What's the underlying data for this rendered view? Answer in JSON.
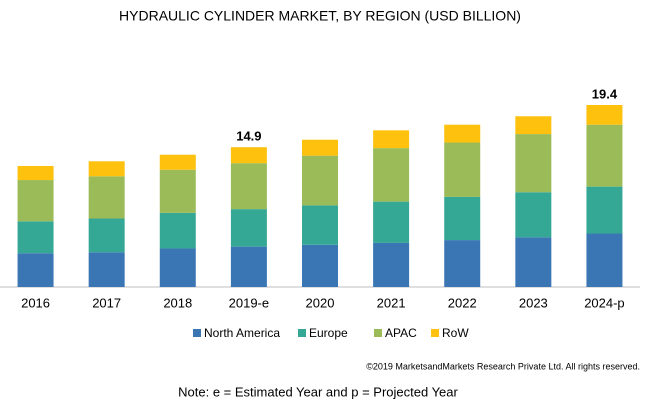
{
  "chart_data": {
    "type": "stacked-bar",
    "title": "HYDRAULIC CYLINDER MARKET, BY REGION (USD BILLION)",
    "categories": [
      "2016",
      "2017",
      "2018",
      "2019-e",
      "2020",
      "2021",
      "2022",
      "2023",
      "2024-p"
    ],
    "series": [
      {
        "name": "North America",
        "color": "#3a75b4",
        "values": [
          3.6,
          3.7,
          4.1,
          4.3,
          4.5,
          4.7,
          5.0,
          5.3,
          5.7
        ]
      },
      {
        "name": "Europe",
        "color": "#35a795",
        "values": [
          3.4,
          3.6,
          3.8,
          4.0,
          4.2,
          4.4,
          4.6,
          4.8,
          5.0
        ]
      },
      {
        "name": "APAC",
        "color": "#9bbb59",
        "values": [
          4.4,
          4.5,
          4.6,
          4.9,
          5.3,
          5.7,
          5.8,
          6.2,
          6.6
        ]
      },
      {
        "name": "RoW",
        "color": "#fdc10e",
        "values": [
          1.5,
          1.6,
          1.6,
          1.7,
          1.7,
          1.9,
          1.9,
          1.9,
          2.1
        ]
      }
    ],
    "totals": [
      null,
      null,
      null,
      14.9,
      null,
      null,
      null,
      null,
      19.4
    ],
    "source": "©2019 MarketsandMarkets Research Private Ltd. All rights reserved.",
    "note": "Note: e = Estimated Year and p = Projected Year"
  }
}
